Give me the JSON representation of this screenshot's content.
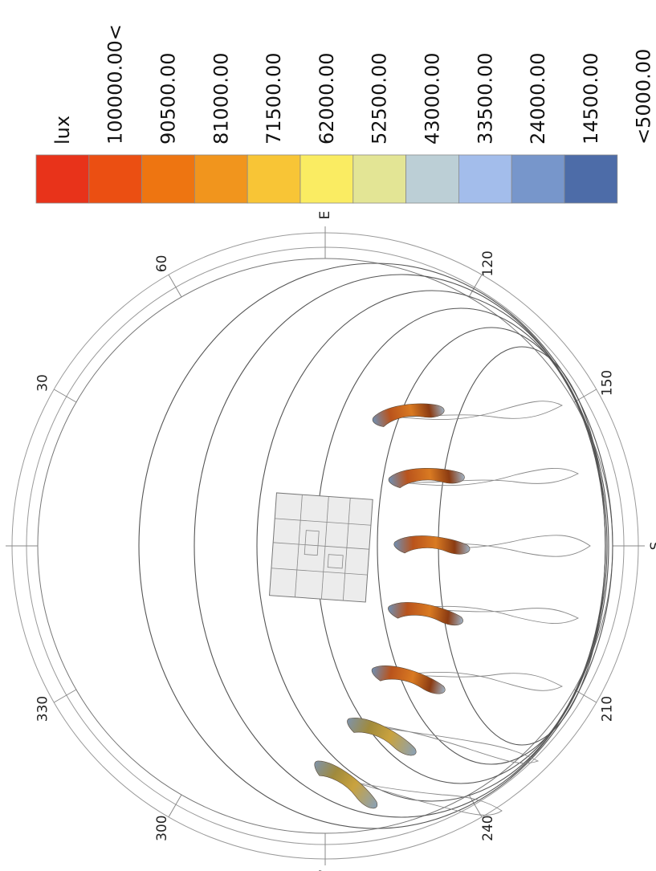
{
  "legend": {
    "unit": "lux",
    "labels": [
      "100000.00<",
      "90500.00",
      "81000.00",
      "71500.00",
      "62000.00",
      "52500.00",
      "43000.00",
      "33500.00",
      "24000.00",
      "14500.00",
      "<5000.00"
    ],
    "colors": [
      "#e8331a",
      "#eb4f12",
      "#ee7511",
      "#f1951d",
      "#f8c536",
      "#faec62",
      "#e3e595",
      "#bccfd6",
      "#a3bdeb",
      "#7796cb",
      "#4d6ca8"
    ]
  },
  "compass": {
    "cardinals": [
      {
        "text": "E",
        "deg": 90
      },
      {
        "text": "S",
        "deg": 180
      },
      {
        "text": "W",
        "deg": 270
      },
      {
        "text": "N",
        "deg": 0
      }
    ],
    "degrees": [
      {
        "text": "60",
        "deg": 60
      },
      {
        "text": "30",
        "deg": 30
      },
      {
        "text": "330",
        "deg": 330
      },
      {
        "text": "300",
        "deg": 300
      },
      {
        "text": "120",
        "deg": 120
      },
      {
        "text": "150",
        "deg": 150
      },
      {
        "text": "210",
        "deg": 210
      },
      {
        "text": "240",
        "deg": 240
      }
    ]
  }
}
